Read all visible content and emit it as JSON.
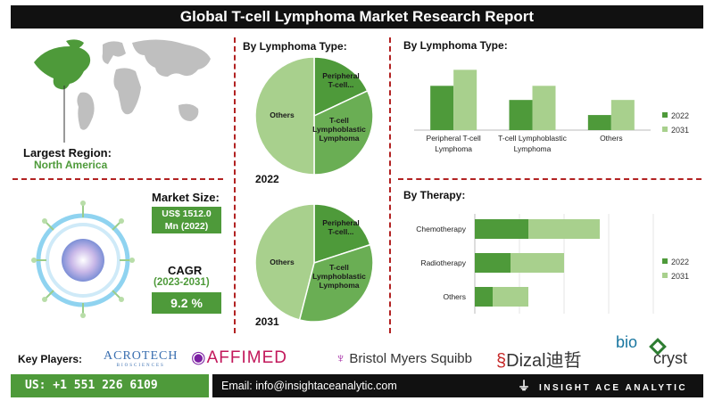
{
  "header": {
    "title": "Global T-cell Lymphoma Market Research Report"
  },
  "region": {
    "label": "Largest Region:",
    "value": "North America"
  },
  "market_size": {
    "label": "Market Size:",
    "value_line1": "US$ 1512.0",
    "value_line2": "Mn (2022)"
  },
  "cagr": {
    "label": "CAGR",
    "years": "(2023-2031)",
    "value": "9.2 %"
  },
  "colors": {
    "dark_green": "#4e9a3a",
    "mid_green": "#6aae54",
    "light_green": "#a8d08d",
    "red_divider": "#b22222"
  },
  "footer": {
    "key_players_label": "Key Players:",
    "logos": [
      "ACROTECH",
      "BIOSCIENCES",
      "AFFIMED",
      "Bristol Myers Squibb",
      "Dizal",
      "迪哲",
      "bio",
      "cryst"
    ],
    "phone": "US: +1 551 226 6109",
    "email": "Email: info@insightaceanalytic.com",
    "brand": "INSIGHT ACE ANALYTIC"
  },
  "chart_data": [
    {
      "type": "pie",
      "title": "By Lymphoma Type:",
      "caption": "2022",
      "slices": [
        {
          "label": "Peripheral T-cell...",
          "value": 18
        },
        {
          "label": "T-cell Lymphoblastic Lymphoma",
          "value": 32
        },
        {
          "label": "Others",
          "value": 50
        }
      ]
    },
    {
      "type": "pie",
      "caption": "2031",
      "slices": [
        {
          "label": "Peripheral T-cell...",
          "value": 20
        },
        {
          "label": "T-cell Lymphoblastic Lymphoma",
          "value": 34
        },
        {
          "label": "Others",
          "value": 46
        }
      ]
    },
    {
      "type": "bar",
      "title": "By Lymphoma Type:",
      "categories": [
        "Peripheral T-cell Lymphoma",
        "T-cell Lymphoblastic Lymphoma",
        "Others"
      ],
      "category_lines": [
        [
          "Peripheral T-cell",
          "Lymphoma"
        ],
        [
          "T-cell Lymphoblastic",
          "Lymphoma"
        ],
        [
          "Others"
        ]
      ],
      "series": [
        {
          "name": "2022",
          "values": [
            47,
            32,
            16
          ]
        },
        {
          "name": "2031",
          "values": [
            64,
            47,
            32
          ]
        }
      ],
      "ylim": [
        0,
        70
      ],
      "legend": "right"
    },
    {
      "type": "bar",
      "orientation": "horizontal",
      "stacked": true,
      "title": "By Therapy:",
      "categories": [
        "Chemotherapy",
        "Radiotherapy",
        "Others"
      ],
      "series": [
        {
          "name": "2022",
          "values": [
            30,
            20,
            10
          ]
        },
        {
          "name": "2031",
          "values": [
            40,
            30,
            20
          ]
        }
      ],
      "xlim": [
        0,
        100
      ],
      "legend": "right"
    }
  ]
}
